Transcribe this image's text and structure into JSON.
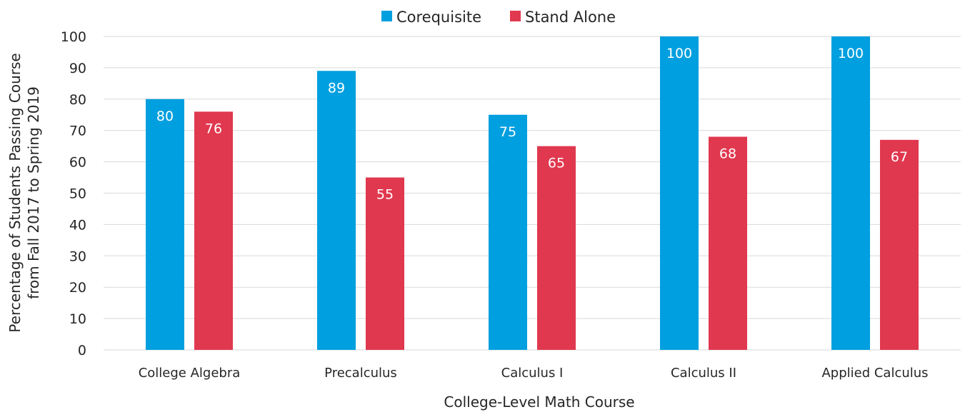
{
  "chart_data": {
    "type": "bar",
    "categories": [
      "College Algebra",
      "Precalculus",
      "Calculus I",
      "Calculus II",
      "Applied Calculus"
    ],
    "series": [
      {
        "name": "Corequisite",
        "values": [
          80,
          89,
          75,
          100,
          100
        ],
        "color": "#009FDF"
      },
      {
        "name": "Stand Alone",
        "values": [
          76,
          55,
          65,
          68,
          67
        ],
        "color": "#E0384F"
      }
    ],
    "xlabel": "College-Level Math Course",
    "ylabel_lines": [
      "Percentage of Students Passing Course",
      "from  Fall 2017 to Spring 2019"
    ],
    "ylim": [
      0,
      100
    ],
    "yticks": [
      0,
      10,
      20,
      30,
      40,
      50,
      60,
      70,
      80,
      90,
      100
    ],
    "grid": true,
    "legend_position": "top-center",
    "data_labels": true
  }
}
